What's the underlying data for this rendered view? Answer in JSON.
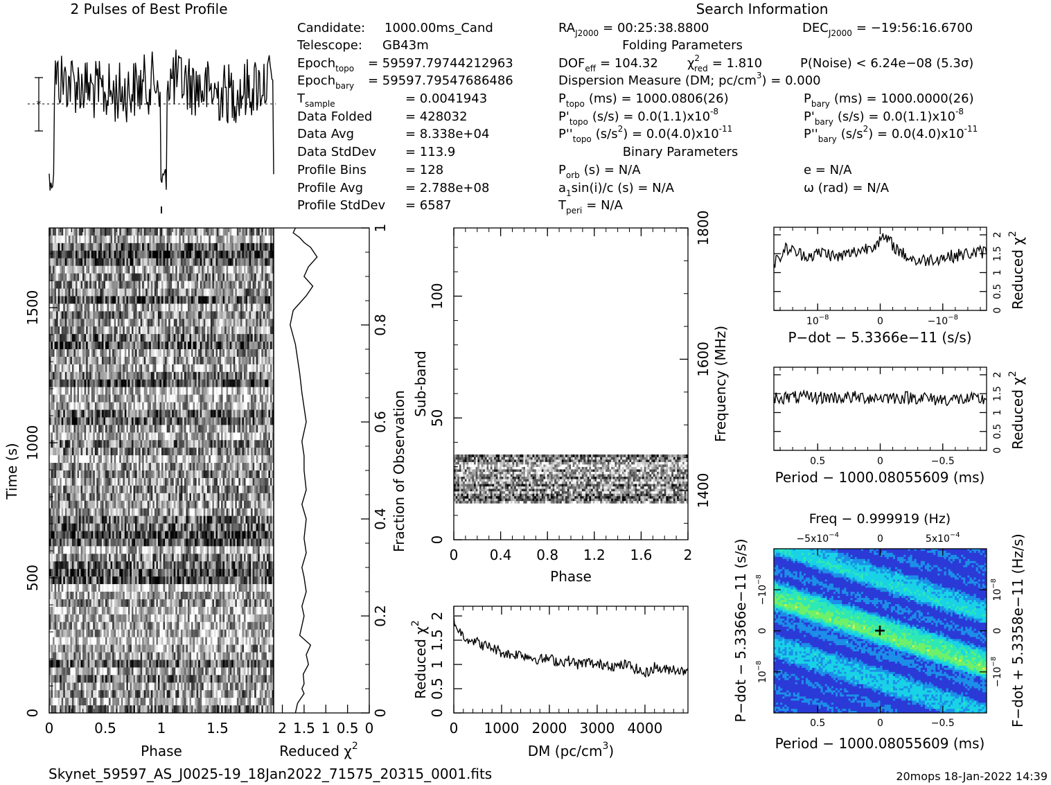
{
  "header": {
    "profile_title": "2 Pulses of Best Profile",
    "search_title": "Search Information",
    "folding_title": "Folding Parameters",
    "binary_title": "Binary Parameters",
    "filename": "Skynet_59597_AS_J0025-19_18Jan2022_71575_20315_0001.fits",
    "footer_right": "20mops 18-Jan-2022 14:39"
  },
  "info_left": [
    {
      "label": "Candidate:",
      "sub": "",
      "value": "1000.00ms_Cand"
    },
    {
      "label": "Telescope:",
      "sub": "",
      "value": "GB43m"
    },
    {
      "label": "Epoch",
      "sub": "topo",
      "value": "= 59597.79744212963"
    },
    {
      "label": "Epoch",
      "sub": "bary",
      "value": "= 59597.79547686486"
    },
    {
      "label": "T",
      "sub": "sample",
      "value": "=   0.0041943"
    },
    {
      "label": "Data Folded",
      "sub": "",
      "value": "=   428032"
    },
    {
      "label": "Data Avg",
      "sub": "",
      "value": "=   8.338e+04"
    },
    {
      "label": "Data StdDev",
      "sub": "",
      "value": "=   113.9"
    },
    {
      "label": "Profile Bins",
      "sub": "",
      "value": "=   128"
    },
    {
      "label": "Profile Avg",
      "sub": "",
      "value": "=   2.788e+08"
    },
    {
      "label": "Profile StdDev",
      "sub": "",
      "value": "=   6587"
    }
  ],
  "info_mid": {
    "ra": "RA",
    "ra_sub": "J2000",
    "ra_val": "= 00:25:38.8800",
    "dof": "DOF",
    "dof_sub": "eff",
    "dof_val": "= 104.32",
    "chi": "χ",
    "chi_sup": "2",
    "chi_sub": "red",
    "chi_val": "= 1.810",
    "dm_line": "Dispersion Measure (DM; pc/cm",
    "dm_sup": "3",
    "dm_val": ") = 0.000",
    "ptopo": "P",
    "ptopo_sub": "topo",
    "ptopo_val": "(ms) =  1000.0806(26)",
    "pdtopo": "P'",
    "pdtopo_sub": "topo",
    "pdtopo_val": "(s/s) = 0.0(1.1)x10",
    "pdtopo_exp": "-8",
    "pddtopo": "P''",
    "pddtopo_sub": "topo",
    "pddtopo_val": "(s/s",
    "pddtopo_sup": "2",
    "pddtopo_val2": ") = 0.0(4.0)x10",
    "pddtopo_exp": "-11",
    "porb": "P",
    "porb_sub": "orb",
    "porb_val": "(s) = N/A",
    "asini": "a",
    "asini_sub": "1",
    "asini_val": "sin(i)/c (s) = N/A",
    "tperi": "T",
    "tperi_sub": "peri",
    "tperi_val": "= N/A"
  },
  "info_right": {
    "dec": "DEC",
    "dec_sub": "J2000",
    "dec_val": "= −19:56:16.6700",
    "pnoise": "P(Noise) < 6.24e−08   (5.3σ)",
    "pbary": "P",
    "pbary_sub": "bary",
    "pbary_val": "(ms) =  1000.0000(26)",
    "pdbary": "P'",
    "pdbary_sub": "bary",
    "pdbary_val": "(s/s) = 0.0(1.1)x10",
    "pdbary_exp": "-8",
    "pddbary": "P''",
    "pddbary_sub": "bary",
    "pddbary_val": "(s/s",
    "pddbary_sup": "2",
    "pddbary_val2": ") = 0.0(4.0)x10",
    "pddbary_exp": "-11",
    "ecc": "e = N/A",
    "omega": "ω (rad) = N/A"
  },
  "chart_data": [
    {
      "type": "line",
      "name": "profile",
      "title": "2 Pulses of Best Profile",
      "xlim": [
        0,
        2
      ],
      "bins": 128,
      "dip_phase": [
        0.0,
        1.0
      ],
      "description_note": ""
    },
    {
      "type": "heatmap",
      "name": "time-phase",
      "xlabel": "Phase",
      "ylabel": "Time (s)",
      "xlim": [
        0,
        2
      ],
      "ylim": [
        0,
        1795
      ],
      "x_ticks": [
        "0",
        "0.5",
        "1",
        "1.5"
      ],
      "y_ticks": [
        "0",
        "500",
        "1000",
        "1500"
      ],
      "colormap": "grayscale"
    },
    {
      "type": "line",
      "name": "time-reduced-chi2",
      "xlabel": "Reduced χ",
      "xlabel_sup": "2",
      "x_ticks": [
        "2",
        "1.5",
        "1",
        "0.5",
        "0"
      ],
      "xlim": [
        2.2,
        0
      ],
      "ylim": [
        0,
        1
      ],
      "y_ticks_right": [
        "0",
        "0.2",
        "0.4",
        "0.6",
        "0.8",
        "1"
      ],
      "ylabel_right": "Fraction of Observation",
      "x": [
        1.7,
        1.65,
        1.5,
        1.55,
        1.5,
        1.52,
        1.4,
        1.45,
        1.35,
        1.6,
        1.55,
        1.5,
        1.55,
        1.45,
        1.5,
        1.55,
        1.45,
        1.5,
        1.45,
        1.55,
        1.45,
        1.5,
        1.5,
        1.55,
        1.45,
        1.5,
        1.55,
        1.6,
        1.65,
        1.7,
        1.82,
        1.75,
        1.45,
        1.3,
        1.5,
        1.4,
        1.2,
        1.35,
        1.5,
        1.6,
        1.75,
        1.7
      ],
      "y": [
        0.0,
        0.02,
        0.04,
        0.05,
        0.06,
        0.08,
        0.1,
        0.12,
        0.14,
        0.16,
        0.18,
        0.2,
        0.22,
        0.25,
        0.28,
        0.3,
        0.33,
        0.36,
        0.4,
        0.43,
        0.46,
        0.5,
        0.53,
        0.56,
        0.6,
        0.63,
        0.66,
        0.7,
        0.73,
        0.76,
        0.8,
        0.83,
        0.86,
        0.88,
        0.9,
        0.92,
        0.94,
        0.96,
        0.97,
        0.98,
        0.99,
        1.0
      ]
    },
    {
      "type": "heatmap",
      "name": "subband-phase",
      "xlabel": "Phase",
      "ylabel": "Sub-band",
      "ylabel_right": "Frequency (MHz)",
      "xlim": [
        0,
        2
      ],
      "ylim": [
        0,
        128
      ],
      "x_ticks": [
        "0",
        "0.4",
        "0.8",
        "1.2",
        "1.6",
        "2"
      ],
      "y_ticks": [
        "0",
        "50",
        "100"
      ],
      "y_ticks_right": [
        "1400",
        "1600",
        "1800"
      ],
      "band_rows": [
        15,
        35
      ],
      "colormap": "grayscale"
    },
    {
      "type": "line",
      "name": "dm-chi2",
      "xlabel": "DM (pc/cm",
      "xlabel_sup": "3",
      "xlabel_end": ")",
      "ylabel": "Reduced χ",
      "ylabel_sup": "2",
      "xlim": [
        0,
        4900
      ],
      "ylim": [
        0,
        2.2
      ],
      "x_ticks": [
        "0",
        "1000",
        "2000",
        "3000",
        "4000"
      ],
      "y_ticks": [
        "0",
        "0.5",
        "1",
        "1.5",
        "2"
      ],
      "x": [
        0,
        100,
        250,
        400,
        600,
        800,
        1000,
        1200,
        1400,
        1600,
        1800,
        2000,
        2200,
        2400,
        2600,
        2800,
        3000,
        3200,
        3400,
        3600,
        3800,
        4000,
        4200,
        4400,
        4600,
        4800,
        4900
      ],
      "y": [
        1.9,
        1.7,
        1.55,
        1.5,
        1.4,
        1.35,
        1.25,
        1.2,
        1.22,
        1.15,
        1.1,
        1.12,
        1.05,
        1.08,
        1.0,
        1.05,
        0.98,
        1.02,
        0.95,
        1.0,
        0.92,
        0.8,
        0.95,
        0.88,
        0.92,
        0.85,
        0.95
      ]
    },
    {
      "type": "line",
      "name": "pdot-chi2",
      "xlabel": "P−dot − 5.3366e−11 (s/s)",
      "ylabel": "Reduced χ",
      "ylabel_sup": "2",
      "ylim": [
        0,
        2.2
      ],
      "y_ticks": [
        "0",
        "0.5",
        "1",
        "1.5",
        "2"
      ],
      "x_ticks": [
        "10",
        "0",
        "−10"
      ],
      "x_tick_exp": [
        "−8",
        "",
        "−8"
      ],
      "x": [
        -1.65,
        -1.5,
        -1.3,
        -1.1,
        -0.9,
        -0.7,
        -0.5,
        -0.3,
        -0.15,
        0.0,
        0.1,
        0.25,
        0.4,
        0.6,
        0.8,
        1.0,
        1.2,
        1.4,
        1.65
      ],
      "y": [
        1.3,
        1.65,
        1.5,
        1.45,
        1.55,
        1.4,
        1.5,
        1.6,
        1.7,
        1.85,
        1.9,
        1.65,
        1.45,
        1.3,
        1.35,
        1.4,
        1.45,
        1.5,
        1.55
      ]
    },
    {
      "type": "line",
      "name": "period-chi2",
      "xlabel": "Period − 1000.08055609 (ms)",
      "ylabel": "Reduced χ",
      "ylabel_sup": "2",
      "ylim": [
        0,
        2.2
      ],
      "y_ticks": [
        "0",
        "0.5",
        "1",
        "1.5",
        "2"
      ],
      "x_ticks": [
        "0.5",
        "0",
        "−0.5"
      ],
      "x": [
        0.85,
        0.75,
        0.65,
        0.55,
        0.45,
        0.35,
        0.25,
        0.15,
        0.05,
        -0.05,
        -0.15,
        -0.25,
        -0.35,
        -0.45,
        -0.55,
        -0.65,
        -0.75,
        -0.85
      ],
      "y": [
        1.3,
        1.4,
        1.35,
        1.45,
        1.5,
        1.55,
        1.65,
        1.75,
        1.8,
        1.85,
        1.7,
        1.55,
        1.5,
        1.45,
        1.35,
        1.4,
        1.35,
        1.3
      ]
    },
    {
      "type": "heatmap",
      "name": "period-pdot",
      "title": "Freq − 0.999919 (Hz)",
      "xlabel": "Period − 1000.08055609 (ms)",
      "ylabel": "P−dot − 5.3366e−11 (s/s)",
      "ylabel_right": "F−dot + 5.3358e−11 (Hz/s)",
      "x_ticks": [
        "0.5",
        "0",
        "−0.5"
      ],
      "top_ticks": [
        "−5x10",
        "0",
        "5x10"
      ],
      "top_tick_exp": [
        "−4",
        "",
        "−4"
      ],
      "y_ticks_left": [
        "−10",
        "0",
        "10"
      ],
      "y_ticks_left_exp": [
        "−8",
        "",
        "−8"
      ],
      "y_ticks_right": [
        "10",
        "0",
        "−10"
      ],
      "y_ticks_right_exp": [
        "−8",
        "",
        "−8"
      ],
      "colormap": [
        "#2b3ad6",
        "#1c8fe8",
        "#19d2e6",
        "#2fe8b4",
        "#6ff06a",
        "#d8f04a"
      ]
    }
  ]
}
